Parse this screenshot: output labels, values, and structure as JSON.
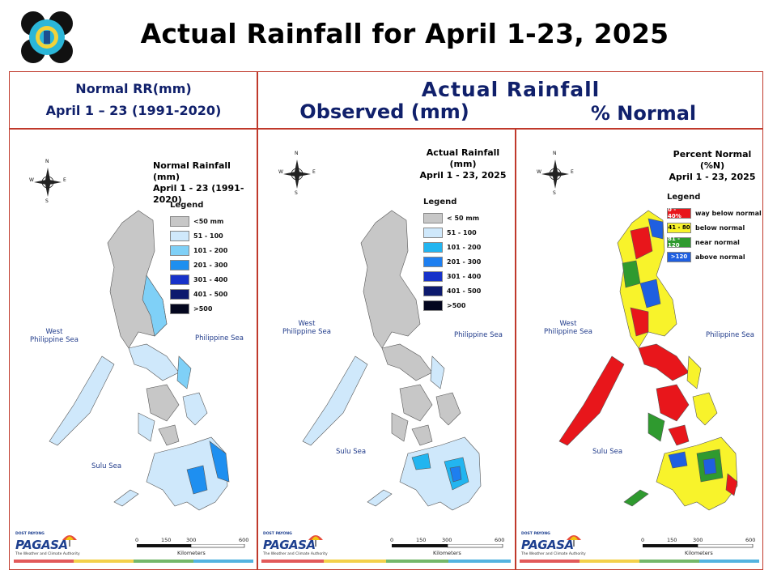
{
  "page_title": "Actual Rainfall for April 1-23, 2025",
  "headers": {
    "normal_line1": "Normal RR(mm)",
    "normal_line2": "April 1 – 23 (1991-2020)",
    "actual": "Actual Rainfall",
    "observed": "Observed (mm)",
    "percent": "% Normal"
  },
  "compass": {
    "north": "N",
    "south": "S",
    "west": "W",
    "east": "E"
  },
  "seas": {
    "west_line1": "West",
    "west_line2": "Philippine Sea",
    "philippine_sea": "Philippine Sea",
    "sulu_sea": "Sulu Sea"
  },
  "scale": {
    "ticks": [
      "0",
      "150",
      "300",
      "600"
    ],
    "unit": "Kilometers"
  },
  "brand": {
    "name": "PAGASA",
    "badge_top": "DOST",
    "badge_mid": "PAYONG",
    "tagline": "The Weather and Climate Authority"
  },
  "panels": {
    "normal": {
      "map_title_line1": "Normal Rainfall (mm)",
      "map_title_line2": "April 1 - 23 (1991-2020)",
      "legend_title": "Legend",
      "legend": [
        {
          "label": "<50 mm",
          "color": "#c7c7c7"
        },
        {
          "label": "51 - 100",
          "color": "#cfe8fb"
        },
        {
          "label": "101 - 200",
          "color": "#7fd0f7"
        },
        {
          "label": "201 - 300",
          "color": "#1e8ff0"
        },
        {
          "label": "301 - 400",
          "color": "#1732c9"
        },
        {
          "label": "401 - 500",
          "color": "#0d1a6e"
        },
        {
          "label": ">500",
          "color": "#04071f"
        }
      ]
    },
    "observed": {
      "map_title_line1": "Actual Rainfall (mm)",
      "map_title_line2": "April 1 - 23, 2025",
      "legend_title": "Legend",
      "legend": [
        {
          "label": "< 50 mm",
          "color": "#c7c7c7"
        },
        {
          "label": "51 - 100",
          "color": "#cfe8fb"
        },
        {
          "label": "101 - 200",
          "color": "#22b5f0"
        },
        {
          "label": "201 - 300",
          "color": "#1e7ff0"
        },
        {
          "label": "301 - 400",
          "color": "#1732c9"
        },
        {
          "label": "401 - 500",
          "color": "#0d1a6e"
        },
        {
          "label": ">500",
          "color": "#04071f"
        }
      ]
    },
    "percent": {
      "map_title_line1": "Percent Normal (%N)",
      "map_title_line2": "April 1 - 23, 2025",
      "legend_title": "Legend",
      "legend": [
        {
          "range": "0 - 40%",
          "label": "way below normal",
          "color": "#e8161b"
        },
        {
          "range": "41 - 80",
          "label": "below normal",
          "color": "#f8f32b"
        },
        {
          "range": "81 - 120",
          "label": "near normal",
          "color": "#2f9a2f"
        },
        {
          "range": ">120",
          "label": "above normal",
          "color": "#1f5fe0"
        }
      ]
    }
  }
}
